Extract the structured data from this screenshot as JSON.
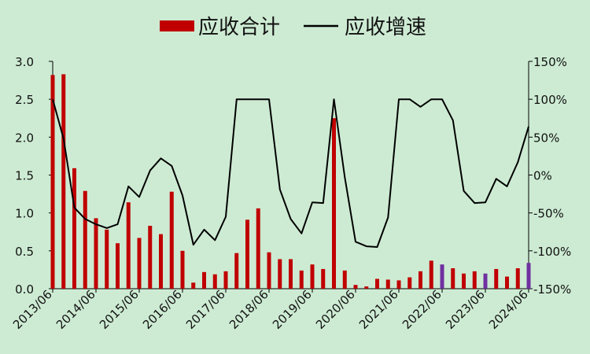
{
  "chart_data": {
    "type": "bar+line",
    "legend": {
      "position": "top-center",
      "items": [
        {
          "label": "应收合计",
          "kind": "bar",
          "color": "#c00000"
        },
        {
          "label": "应收增速",
          "kind": "line",
          "color": "#000000"
        }
      ]
    },
    "left_axis": {
      "min": 0,
      "max": 3.0,
      "ticks": [
        "0.0",
        "0.5",
        "1.0",
        "1.5",
        "2.0",
        "2.5",
        "3.0"
      ]
    },
    "right_axis": {
      "min": -150,
      "max": 150,
      "ticks": [
        "-150%",
        "-100%",
        "-50%",
        "0%",
        "50%",
        "100%",
        "150%"
      ]
    },
    "x_ticks": [
      "2013/06",
      "2014/06",
      "2015/06",
      "2016/06",
      "2017/06",
      "2018/06",
      "2019/06",
      "2020/06",
      "2021/06",
      "2022/06",
      "2023/06",
      "2024/06"
    ],
    "bar_color": "#c00000",
    "highlight_color": "#7030a0",
    "bars": [
      {
        "v": 2.82
      },
      {
        "v": 2.83
      },
      {
        "v": 1.59
      },
      {
        "v": 1.29
      },
      {
        "v": 0.93
      },
      {
        "v": 0.78
      },
      {
        "v": 0.6
      },
      {
        "v": 1.14
      },
      {
        "v": 0.67
      },
      {
        "v": 0.83
      },
      {
        "v": 0.72
      },
      {
        "v": 1.28
      },
      {
        "v": 0.5
      },
      {
        "v": 0.08
      },
      {
        "v": 0.22
      },
      {
        "v": 0.19
      },
      {
        "v": 0.23
      },
      {
        "v": 0.47
      },
      {
        "v": 0.91
      },
      {
        "v": 1.06
      },
      {
        "v": 0.48
      },
      {
        "v": 0.39
      },
      {
        "v": 0.39
      },
      {
        "v": 0.24
      },
      {
        "v": 0.32
      },
      {
        "v": 0.26
      },
      {
        "v": 2.25
      },
      {
        "v": 0.24
      },
      {
        "v": 0.05
      },
      {
        "v": 0.03
      },
      {
        "v": 0.13
      },
      {
        "v": 0.12
      },
      {
        "v": 0.11
      },
      {
        "v": 0.15
      },
      {
        "v": 0.23
      },
      {
        "v": 0.37
      },
      {
        "v": 0.32,
        "hl": true
      },
      {
        "v": 0.27
      },
      {
        "v": 0.2
      },
      {
        "v": 0.23
      },
      {
        "v": 0.2,
        "hl": true
      },
      {
        "v": 0.26
      },
      {
        "v": 0.16
      },
      {
        "v": 0.27
      },
      {
        "v": 0.34,
        "hl": true
      }
    ],
    "growth": [
      100,
      48,
      -43,
      -58,
      -65,
      -70,
      -65,
      -15,
      -29,
      6,
      22,
      12,
      -27,
      -92,
      -72,
      -86,
      -55,
      100,
      100,
      100,
      100,
      -19,
      -58,
      -77,
      -36,
      -37,
      100,
      -3,
      -88,
      -94,
      -95,
      -56,
      100,
      100,
      90,
      100,
      100,
      72,
      -21,
      -37,
      -36,
      -5,
      -15,
      17,
      64
    ]
  }
}
